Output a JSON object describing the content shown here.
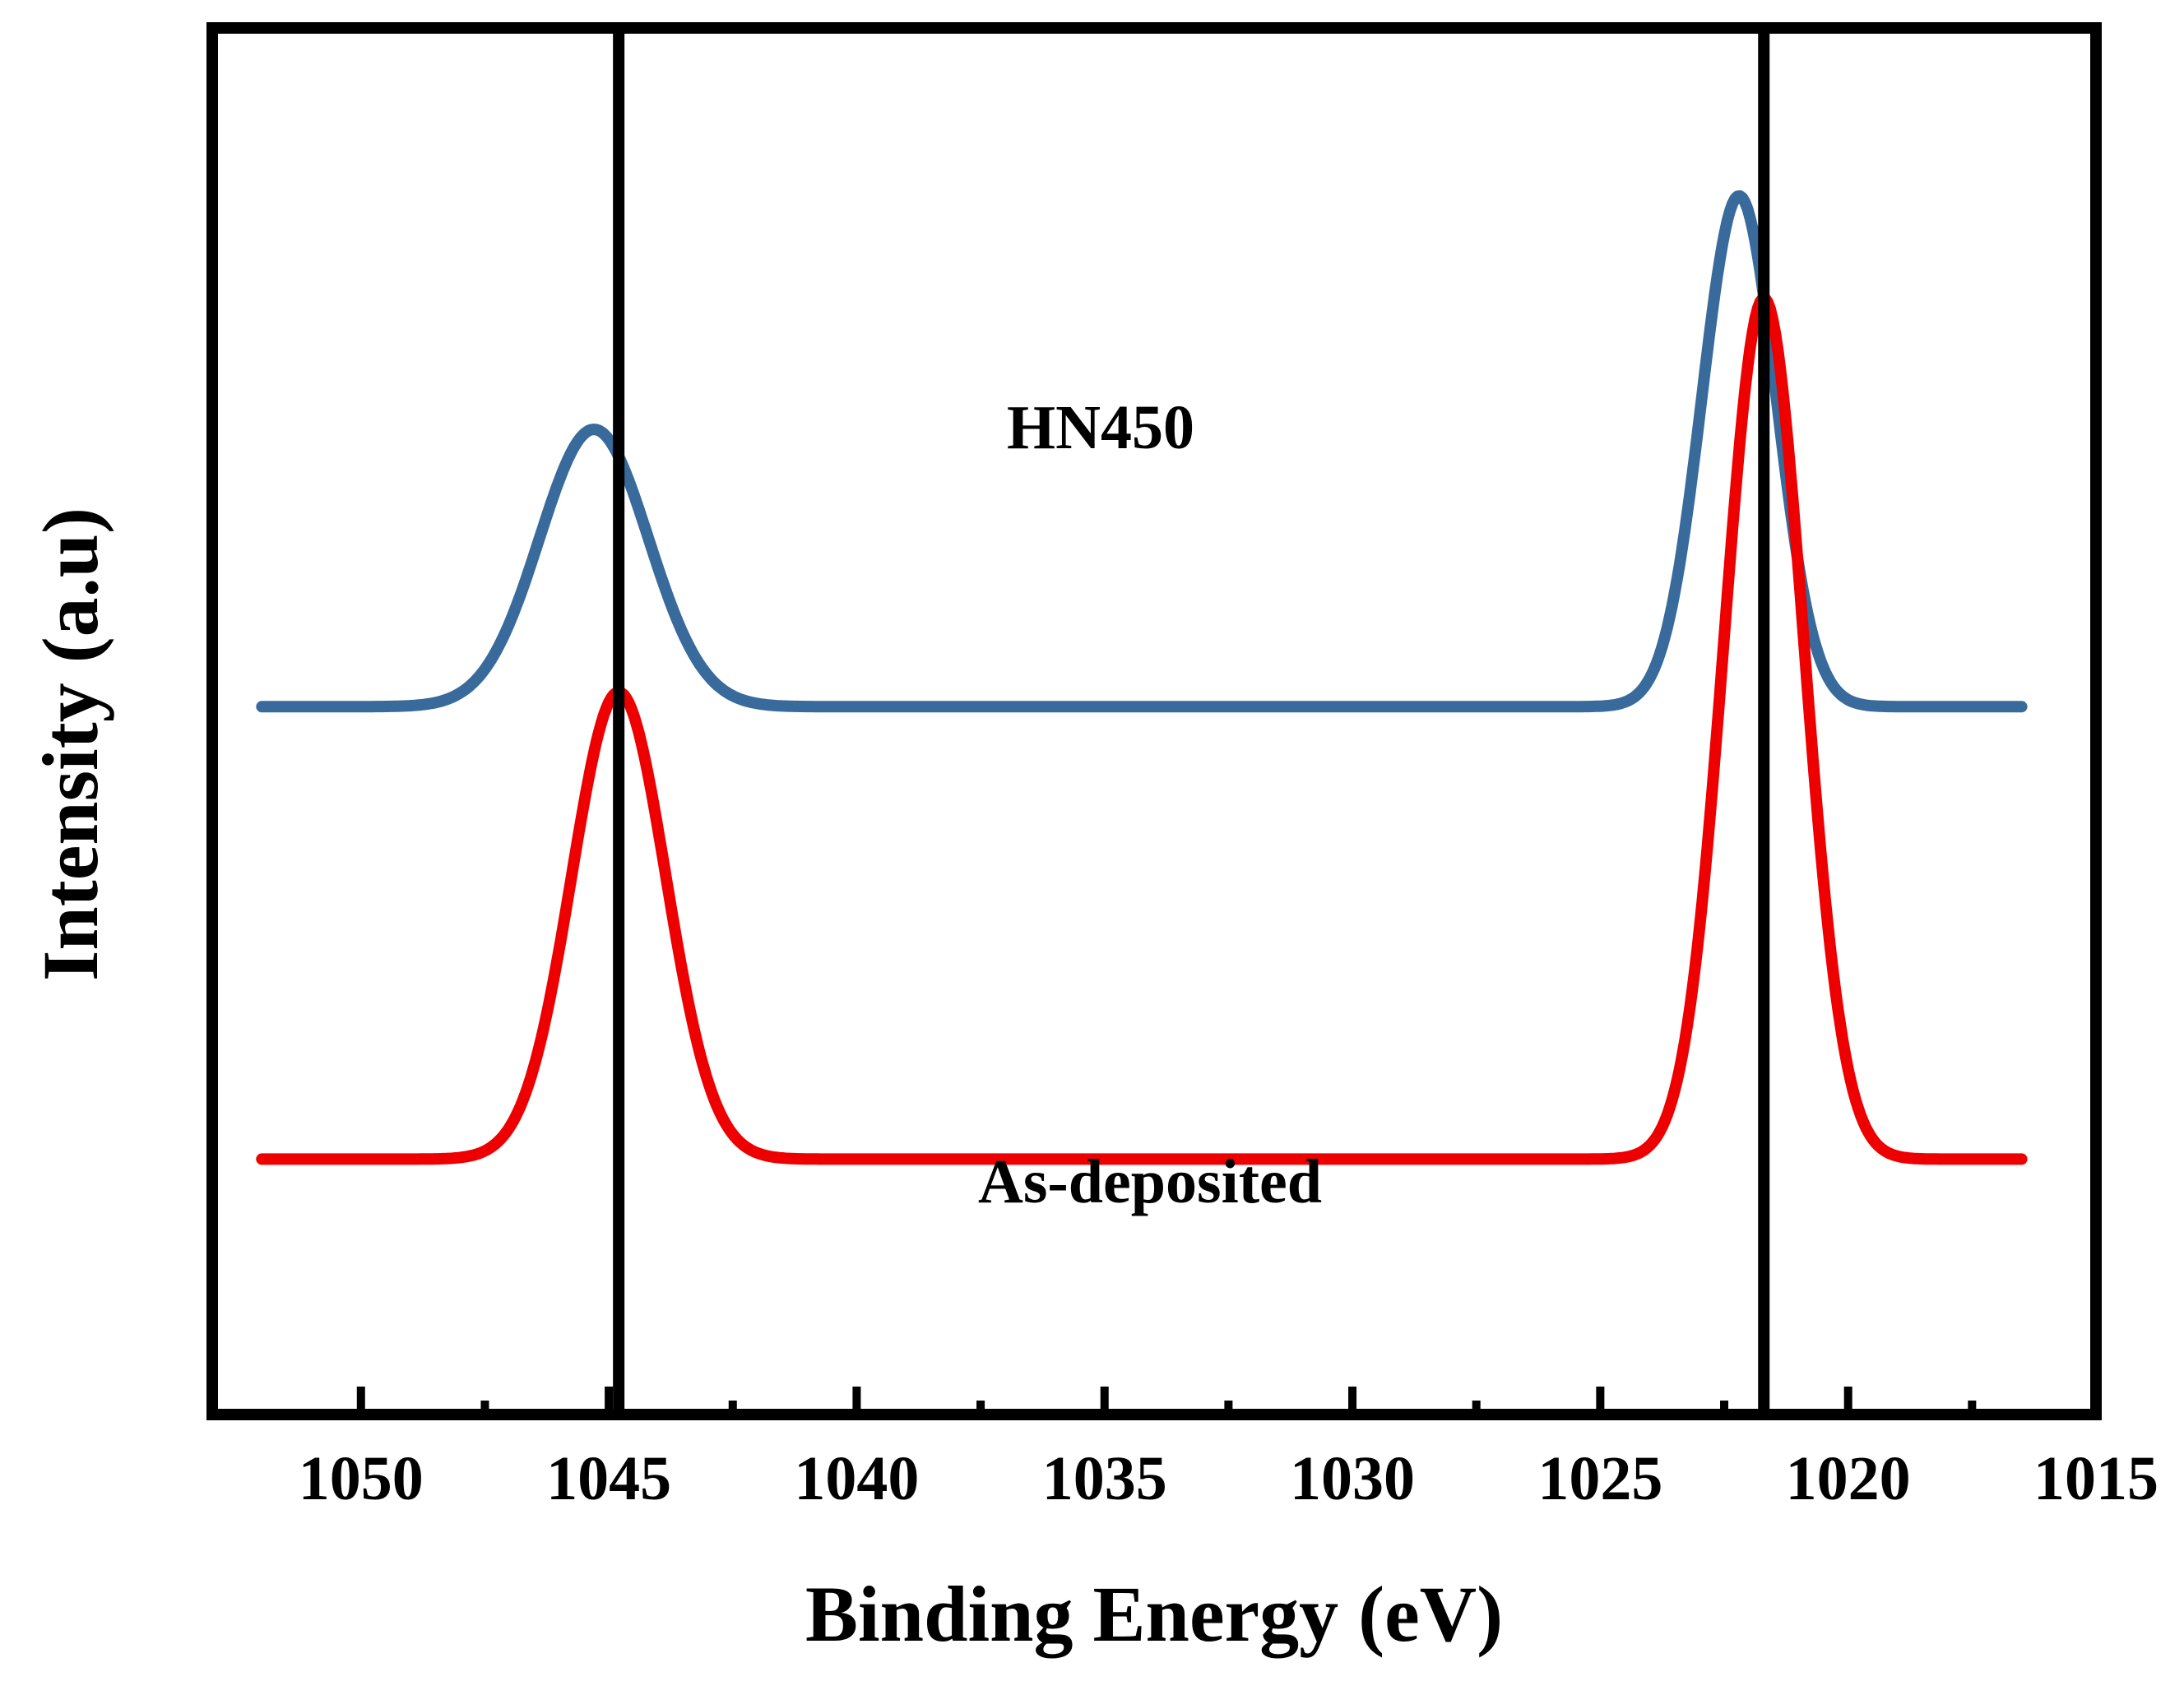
{
  "chart_data": {
    "type": "line",
    "xlabel": "Binding Energy (eV)",
    "ylabel": "Intensity (a.u)",
    "xlim": [
      1053,
      1015
    ],
    "x_reversed": true,
    "y_ticks_shown": false,
    "grid": false,
    "legend": "none",
    "x_ticks": [
      1050,
      1045,
      1040,
      1035,
      1030,
      1025,
      1020,
      1015
    ],
    "x_ticks_text": [
      "1050",
      "1045",
      "1040",
      "1035",
      "1030",
      "1025",
      "1020",
      "1015"
    ],
    "x_minor_ticks": [
      1047.5,
      1042.5,
      1037.5,
      1032.5,
      1027.5,
      1022.5,
      1017.5
    ],
    "reference_lines_x": [
      1044.8,
      1021.7
    ],
    "series": [
      {
        "name": "HN450",
        "color": "#386a9c",
        "baseline": 0.62,
        "x_range": [
          1052,
          1016.5
        ],
        "peaks": [
          {
            "center": 1045.3,
            "height": 0.38,
            "sigma": 1.1
          },
          {
            "center": 1022.2,
            "height": 0.7,
            "sigma": 0.75
          }
        ]
      },
      {
        "name": "As-deposited",
        "color": "#ee0000",
        "baseline": 0.0,
        "x_range": [
          1052,
          1016.5
        ],
        "peaks": [
          {
            "center": 1044.8,
            "height": 0.64,
            "sigma": 0.95
          },
          {
            "center": 1021.7,
            "height": 1.18,
            "sigma": 0.8
          }
        ]
      }
    ],
    "ylim": [
      -0.35,
      1.55
    ]
  }
}
